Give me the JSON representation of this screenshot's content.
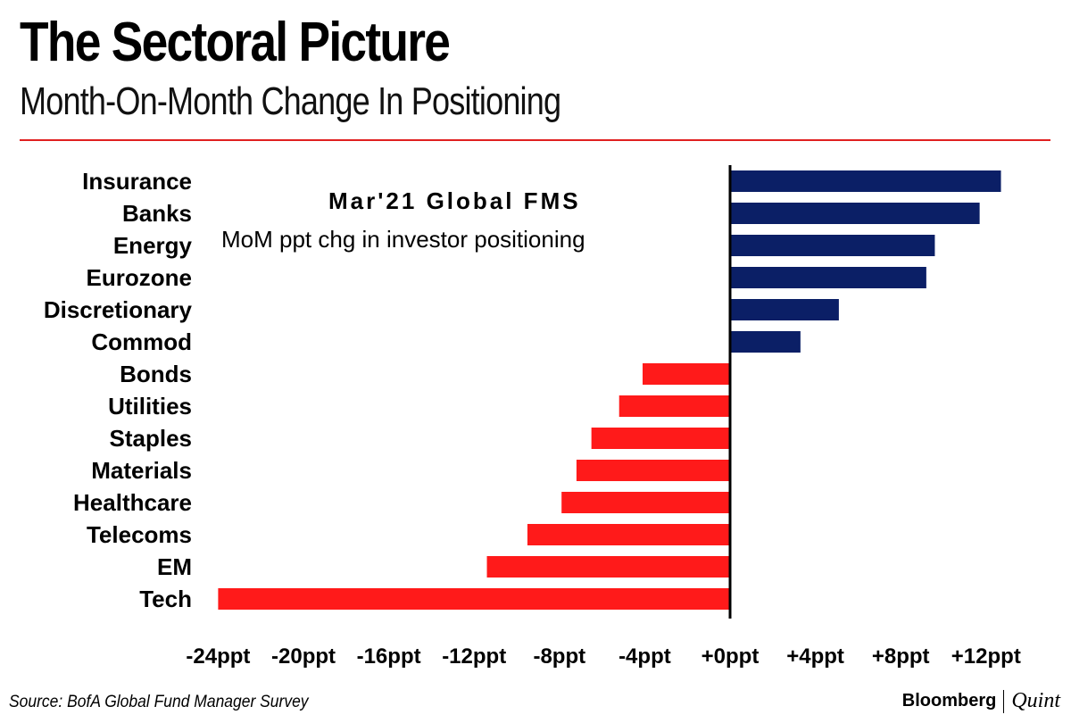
{
  "header": {
    "title": "The Sectoral Picture",
    "subtitle": "Month-On-Month Change In Positioning"
  },
  "annotation": {
    "title": "Mar'21 Global FMS",
    "subtitle": "MoM ppt chg in investor positioning"
  },
  "footer": {
    "source": "Source: BofA Global Fund Manager Survey",
    "brand_main": "Bloomberg",
    "brand_sub": "Quint"
  },
  "colors": {
    "positive": "#0b1f66",
    "negative": "#ff1a1a",
    "rule": "#e02020",
    "axis": "#000000"
  },
  "chart_data": {
    "type": "bar",
    "orientation": "horizontal",
    "title": "The Sectoral Picture",
    "subtitle": "Month-On-Month Change In Positioning",
    "xlabel": "",
    "ylabel": "",
    "xlim": [
      -24,
      13.5
    ],
    "x_ticks": [
      -24,
      -20,
      -16,
      -12,
      -8,
      -4,
      0,
      4,
      8,
      12
    ],
    "x_tick_labels": [
      "-24ppt",
      "-20ppt",
      "-16ppt",
      "-12ppt",
      "-8ppt",
      "-4ppt",
      "+0ppt",
      "+4ppt",
      "+8ppt",
      "+12ppt"
    ],
    "grid": false,
    "legend": "none",
    "categories": [
      "Insurance",
      "Banks",
      "Energy",
      "Eurozone",
      "Discretionary",
      "Commod",
      "Bonds",
      "Utilities",
      "Staples",
      "Materials",
      "Healthcare",
      "Telecoms",
      "EM",
      "Tech"
    ],
    "values": [
      12.7,
      11.7,
      9.6,
      9.2,
      5.1,
      3.3,
      -4.1,
      -5.2,
      -6.5,
      -7.2,
      -7.9,
      -9.5,
      -11.4,
      -24.0
    ]
  }
}
